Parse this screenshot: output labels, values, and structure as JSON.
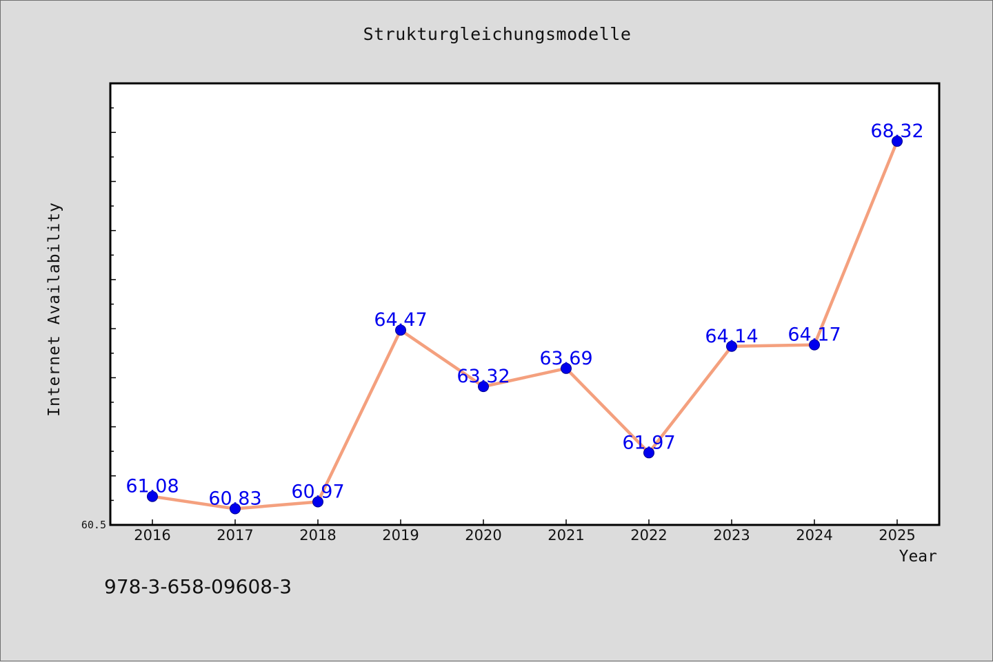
{
  "chart_data": {
    "type": "line",
    "title": "Strukturgleichungsmodelle",
    "xlabel": "Year",
    "ylabel": "Internet Availability",
    "x": [
      "2016",
      "2017",
      "2018",
      "2019",
      "2020",
      "2021",
      "2022",
      "2023",
      "2024",
      "2025"
    ],
    "series": [
      {
        "values": [
          61.08,
          60.83,
          60.97,
          64.47,
          63.32,
          63.69,
          61.97,
          64.14,
          64.17,
          68.32
        ],
        "line_color": "#f4a07e",
        "marker_color": "#0000ee"
      }
    ],
    "data_labels": [
      "61.08",
      "60.83",
      "60.97",
      "64.47",
      "63.32",
      "63.69",
      "61.97",
      "64.14",
      "64.17",
      "68.32"
    ],
    "ylim": [
      60.5,
      69.5
    ],
    "y_tick_labels": [
      "60.5"
    ],
    "grid": false,
    "legend": "none"
  },
  "footnote": "978-3-658-09608-3"
}
